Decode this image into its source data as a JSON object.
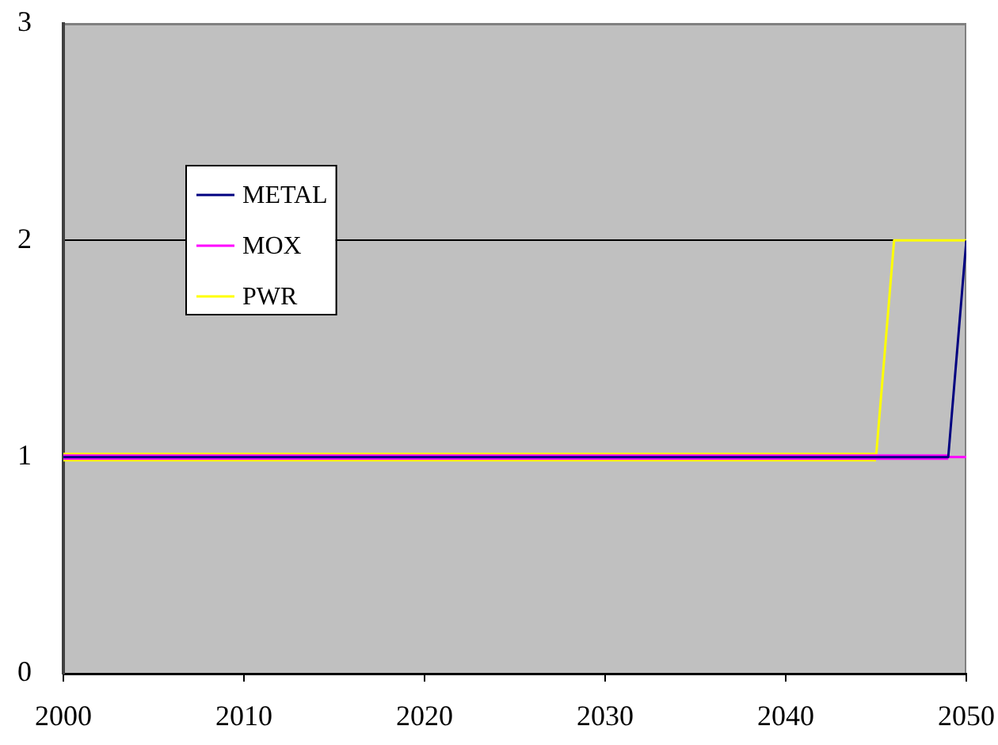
{
  "chart_data": {
    "type": "line",
    "x": [
      2000,
      2001,
      2002,
      2003,
      2004,
      2005,
      2006,
      2007,
      2008,
      2009,
      2010,
      2011,
      2012,
      2013,
      2014,
      2015,
      2016,
      2017,
      2018,
      2019,
      2020,
      2021,
      2022,
      2023,
      2024,
      2025,
      2026,
      2027,
      2028,
      2029,
      2030,
      2031,
      2032,
      2033,
      2034,
      2035,
      2036,
      2037,
      2038,
      2039,
      2040,
      2041,
      2042,
      2043,
      2044,
      2045,
      2046,
      2047,
      2048,
      2049,
      2050
    ],
    "series": [
      {
        "name": "METAL",
        "color": "#000080",
        "values": [
          1,
          1,
          1,
          1,
          1,
          1,
          1,
          1,
          1,
          1,
          1,
          1,
          1,
          1,
          1,
          1,
          1,
          1,
          1,
          1,
          1,
          1,
          1,
          1,
          1,
          1,
          1,
          1,
          1,
          1,
          1,
          1,
          1,
          1,
          1,
          1,
          1,
          1,
          1,
          1,
          1,
          1,
          1,
          1,
          1,
          1,
          1,
          1,
          1,
          1,
          2
        ]
      },
      {
        "name": "MOX",
        "color": "#ff00ff",
        "values": [
          1,
          1,
          1,
          1,
          1,
          1,
          1,
          1,
          1,
          1,
          1,
          1,
          1,
          1,
          1,
          1,
          1,
          1,
          1,
          1,
          1,
          1,
          1,
          1,
          1,
          1,
          1,
          1,
          1,
          1,
          1,
          1,
          1,
          1,
          1,
          1,
          1,
          1,
          1,
          1,
          1,
          1,
          1,
          1,
          1,
          1,
          1,
          1,
          1,
          1,
          1
        ]
      },
      {
        "name": "PWR",
        "color": "#ffff00",
        "values": [
          1,
          1,
          1,
          1,
          1,
          1,
          1,
          1,
          1,
          1,
          1,
          1,
          1,
          1,
          1,
          1,
          1,
          1,
          1,
          1,
          1,
          1,
          1,
          1,
          1,
          1,
          1,
          1,
          1,
          1,
          1,
          1,
          1,
          1,
          1,
          1,
          1,
          1,
          1,
          1,
          1,
          1,
          1,
          1,
          1,
          1,
          2,
          2,
          2,
          2,
          2
        ]
      }
    ],
    "xlim": [
      2000,
      2050
    ],
    "xticks": [
      2000,
      2010,
      2020,
      2030,
      2040,
      2050
    ],
    "ylim": [
      0,
      3
    ],
    "yticks": [
      0,
      1,
      2,
      3
    ],
    "grid": "y",
    "legend": "top left",
    "marker": "none"
  }
}
